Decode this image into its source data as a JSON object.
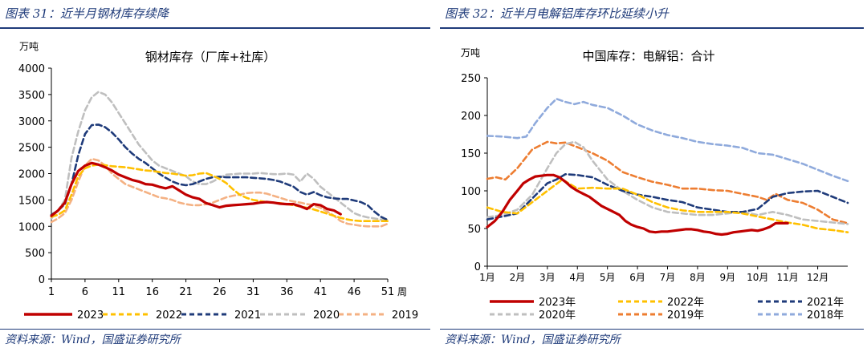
{
  "colors": {
    "accent": "#1f3b7a"
  },
  "left": {
    "figure_title": "图表 31：近半月钢材库存续降",
    "source": "资料来源：Wind，国盛证券研究所",
    "chart_data": {
      "type": "line",
      "title": "钢材库存（厂库+社库）",
      "ylabel": "万吨",
      "xlabel": "周",
      "ylim": [
        0,
        4000
      ],
      "xlim": [
        1,
        51
      ],
      "yticks": [
        "0",
        "500",
        "1000",
        "1500",
        "2000",
        "2500",
        "3000",
        "3500",
        "4000"
      ],
      "xticks": [
        "1",
        "6",
        "11",
        "16",
        "21",
        "26",
        "31",
        "36",
        "41",
        "46",
        "51"
      ],
      "grid": false,
      "legend": "bottom",
      "series": [
        {
          "name": "2023",
          "color": "#c00000",
          "dash": "solid",
          "x": [
            1,
            2,
            3,
            4,
            5,
            6,
            7,
            8,
            9,
            10,
            11,
            12,
            13,
            14,
            15,
            16,
            17,
            18,
            19,
            20,
            21,
            22,
            23,
            24,
            25,
            26,
            27,
            28,
            29,
            30,
            31,
            32,
            33,
            34,
            35,
            36,
            37,
            38,
            39,
            40,
            41,
            42,
            43,
            44
          ],
          "values": [
            1200,
            1300,
            1450,
            1800,
            2050,
            2150,
            2200,
            2170,
            2120,
            2060,
            1980,
            1930,
            1880,
            1850,
            1800,
            1790,
            1750,
            1720,
            1760,
            1680,
            1600,
            1550,
            1520,
            1440,
            1400,
            1360,
            1390,
            1400,
            1410,
            1420,
            1430,
            1450,
            1460,
            1450,
            1430,
            1420,
            1420,
            1380,
            1330,
            1420,
            1400,
            1330,
            1300,
            1230
          ]
        },
        {
          "name": "2022",
          "color": "#ffc000",
          "dash": "dashed",
          "x": [
            1,
            2,
            3,
            4,
            5,
            6,
            7,
            8,
            9,
            10,
            11,
            12,
            13,
            14,
            15,
            16,
            17,
            18,
            19,
            20,
            21,
            22,
            23,
            24,
            25,
            26,
            27,
            28,
            29,
            30,
            31,
            32,
            33,
            34,
            35,
            36,
            37,
            38,
            39,
            40,
            41,
            42,
            43,
            44,
            45,
            46,
            47,
            48,
            49,
            50,
            51
          ],
          "values": [
            1180,
            1220,
            1300,
            1600,
            1950,
            2100,
            2150,
            2170,
            2160,
            2140,
            2130,
            2120,
            2100,
            2080,
            2060,
            2050,
            2030,
            2010,
            2000,
            1980,
            1960,
            1970,
            2000,
            2010,
            1960,
            1900,
            1820,
            1700,
            1600,
            1540,
            1500,
            1480,
            1460,
            1450,
            1440,
            1420,
            1400,
            1380,
            1350,
            1320,
            1280,
            1240,
            1200,
            1160,
            1130,
            1110,
            1100,
            1100,
            1100,
            1100,
            1100
          ]
        },
        {
          "name": "2021",
          "color": "#1f3b7a",
          "dash": "dashed",
          "x": [
            1,
            2,
            3,
            4,
            5,
            6,
            7,
            8,
            9,
            10,
            11,
            12,
            13,
            14,
            15,
            16,
            17,
            18,
            19,
            20,
            21,
            22,
            23,
            24,
            25,
            26,
            27,
            28,
            29,
            30,
            31,
            32,
            33,
            34,
            35,
            36,
            37,
            38,
            39,
            40,
            41,
            42,
            43,
            44,
            45,
            46,
            47,
            48,
            49,
            50,
            51
          ],
          "values": [
            1220,
            1300,
            1420,
            1800,
            2350,
            2750,
            2920,
            2930,
            2880,
            2780,
            2650,
            2500,
            2380,
            2280,
            2200,
            2100,
            2000,
            1920,
            1850,
            1800,
            1780,
            1800,
            1850,
            1900,
            1930,
            1940,
            1930,
            1930,
            1930,
            1930,
            1920,
            1910,
            1900,
            1880,
            1850,
            1800,
            1750,
            1650,
            1600,
            1650,
            1590,
            1550,
            1530,
            1520,
            1520,
            1490,
            1460,
            1400,
            1280,
            1180,
            1120
          ]
        },
        {
          "name": "2020",
          "color": "#bfbfbf",
          "dash": "dashed",
          "x": [
            1,
            2,
            3,
            4,
            5,
            6,
            7,
            8,
            9,
            10,
            11,
            12,
            13,
            14,
            15,
            16,
            17,
            18,
            19,
            20,
            21,
            22,
            23,
            24,
            25,
            26,
            27,
            28,
            29,
            30,
            31,
            32,
            33,
            34,
            35,
            36,
            37,
            38,
            39,
            40,
            41,
            42,
            43,
            44,
            45,
            46,
            47,
            48,
            49,
            50,
            51
          ],
          "values": [
            1150,
            1300,
            1500,
            2300,
            2800,
            3200,
            3450,
            3550,
            3500,
            3350,
            3150,
            2950,
            2750,
            2550,
            2400,
            2250,
            2150,
            2100,
            2050,
            2000,
            1950,
            1850,
            1800,
            1800,
            1850,
            1920,
            1980,
            1990,
            2000,
            2000,
            2000,
            2010,
            2000,
            1990,
            1990,
            2000,
            1980,
            1850,
            2000,
            1900,
            1750,
            1650,
            1550,
            1450,
            1350,
            1250,
            1200,
            1170,
            1150,
            1130,
            1100
          ]
        },
        {
          "name": "2019",
          "color": "#f4b183",
          "dash": "dashed",
          "x": [
            1,
            2,
            3,
            4,
            5,
            6,
            7,
            8,
            9,
            10,
            11,
            12,
            13,
            14,
            15,
            16,
            17,
            18,
            19,
            20,
            21,
            22,
            23,
            24,
            25,
            26,
            27,
            28,
            29,
            30,
            31,
            32,
            33,
            34,
            35,
            36,
            37,
            38,
            39,
            40,
            41,
            42,
            43,
            44,
            45,
            46,
            47,
            48,
            49,
            50,
            51
          ],
          "values": [
            1080,
            1150,
            1250,
            1500,
            1850,
            2150,
            2280,
            2250,
            2150,
            2000,
            1900,
            1800,
            1750,
            1700,
            1650,
            1600,
            1550,
            1530,
            1500,
            1450,
            1420,
            1400,
            1400,
            1420,
            1450,
            1500,
            1550,
            1580,
            1600,
            1630,
            1640,
            1640,
            1620,
            1580,
            1540,
            1500,
            1470,
            1450,
            1420,
            1400,
            1350,
            1280,
            1200,
            1100,
            1050,
            1030,
            1010,
            1000,
            1000,
            1000,
            1050
          ]
        }
      ]
    }
  },
  "right": {
    "figure_title": "图表 32：近半月电解铝库存环比延续小升",
    "source": "资料来源：Wind，国盛证券研究所",
    "chart_data": {
      "type": "line",
      "title": "中国库存：电解铝：合计",
      "ylabel": "万吨",
      "xlabel": "",
      "ylim": [
        0,
        250
      ],
      "xlim": [
        1,
        13
      ],
      "yticks": [
        "0",
        "50",
        "100",
        "150",
        "200",
        "250"
      ],
      "xticks": [
        "1月",
        "2月",
        "3月",
        "4月",
        "5月",
        "6月",
        "7月",
        "8月",
        "9月",
        "10月",
        "11月",
        "12月"
      ],
      "grid": false,
      "legend": "bottom",
      "series": [
        {
          "name": "2023年",
          "color": "#c00000",
          "dash": "solid",
          "x": [
            1,
            1.25,
            1.5,
            1.75,
            2,
            2.2,
            2.4,
            2.6,
            2.8,
            3,
            3.2,
            3.4,
            3.6,
            3.8,
            4,
            4.2,
            4.4,
            4.6,
            4.8,
            5,
            5.2,
            5.4,
            5.6,
            5.8,
            6,
            6.2,
            6.4,
            6.6,
            6.8,
            7,
            7.2,
            7.4,
            7.6,
            7.8,
            8,
            8.2,
            8.4,
            8.6,
            8.8,
            9,
            9.2,
            9.4,
            9.6,
            9.8,
            10,
            10.2,
            10.4,
            10.6,
            10.8,
            11
          ],
          "values": [
            52,
            60,
            72,
            88,
            100,
            110,
            115,
            119,
            120,
            121,
            121,
            118,
            112,
            105,
            100,
            96,
            92,
            86,
            80,
            76,
            72,
            68,
            60,
            55,
            52,
            50,
            46,
            45,
            46,
            46,
            47,
            48,
            49,
            49,
            48,
            46,
            45,
            43,
            42,
            43,
            45,
            46,
            47,
            48,
            47,
            49,
            52,
            57,
            57,
            57
          ]
        },
        {
          "name": "2022年",
          "color": "#ffc000",
          "dash": "dashed",
          "x": [
            1,
            1.5,
            2,
            2.5,
            3,
            3.5,
            4,
            4.5,
            5,
            5.5,
            6,
            6.5,
            7,
            7.5,
            8,
            8.5,
            9,
            9.5,
            10,
            10.5,
            11,
            11.5,
            12,
            12.5,
            13
          ],
          "values": [
            78,
            72,
            70,
            85,
            100,
            115,
            103,
            104,
            103,
            103,
            95,
            85,
            78,
            74,
            72,
            72,
            72,
            70,
            66,
            62,
            58,
            55,
            50,
            48,
            45
          ]
        },
        {
          "name": "2021年",
          "color": "#1f3b7a",
          "dash": "dashed",
          "x": [
            1,
            1.5,
            2,
            2.5,
            3,
            3.3,
            3.6,
            4,
            4.5,
            5,
            5.5,
            6,
            6.5,
            7,
            7.5,
            8,
            8.5,
            9,
            9.5,
            10,
            10.5,
            11,
            11.5,
            12,
            12.5,
            13
          ],
          "values": [
            62,
            66,
            70,
            90,
            110,
            115,
            122,
            121,
            118,
            108,
            100,
            95,
            92,
            88,
            85,
            78,
            75,
            72,
            72,
            76,
            92,
            97,
            99,
            100,
            92,
            84
          ]
        },
        {
          "name": "2020年",
          "color": "#bfbfbf",
          "dash": "dashed",
          "x": [
            1,
            1.5,
            2,
            2.5,
            3,
            3.3,
            3.6,
            3.9,
            4.2,
            4.5,
            5,
            5.5,
            6,
            6.5,
            7,
            7.5,
            8,
            8.5,
            9,
            9.5,
            10,
            10.5,
            11,
            11.5,
            12,
            12.5,
            13
          ],
          "values": [
            65,
            68,
            75,
            95,
            130,
            150,
            162,
            165,
            158,
            140,
            115,
            100,
            88,
            78,
            72,
            70,
            68,
            68,
            70,
            72,
            68,
            72,
            68,
            62,
            60,
            58,
            56
          ]
        },
        {
          "name": "2019年",
          "color": "#ed7d31",
          "dash": "dashed",
          "x": [
            1,
            1.3,
            1.6,
            2,
            2.5,
            3,
            3.3,
            3.6,
            4,
            4.5,
            5,
            5.5,
            6,
            6.5,
            7,
            7.5,
            8,
            8.5,
            9,
            9.5,
            10,
            10.3,
            10.6,
            11,
            11.5,
            12,
            12.5,
            13
          ],
          "values": [
            116,
            118,
            115,
            130,
            155,
            165,
            163,
            164,
            158,
            150,
            140,
            125,
            118,
            112,
            108,
            103,
            103,
            101,
            100,
            96,
            92,
            88,
            96,
            88,
            84,
            75,
            62,
            57
          ]
        },
        {
          "name": "2018年",
          "color": "#8faadc",
          "dash": "dashed",
          "x": [
            1,
            1.5,
            2,
            2.3,
            2.6,
            3,
            3.3,
            3.6,
            3.9,
            4.2,
            4.5,
            5,
            5.5,
            6,
            6.5,
            7,
            7.5,
            8,
            8.5,
            9,
            9.5,
            10,
            10.5,
            11,
            11.5,
            12,
            12.5,
            13
          ],
          "values": [
            173,
            172,
            170,
            172,
            190,
            210,
            222,
            218,
            215,
            218,
            214,
            210,
            200,
            188,
            180,
            174,
            170,
            165,
            162,
            160,
            157,
            150,
            148,
            142,
            136,
            128,
            120,
            113
          ]
        }
      ]
    }
  }
}
